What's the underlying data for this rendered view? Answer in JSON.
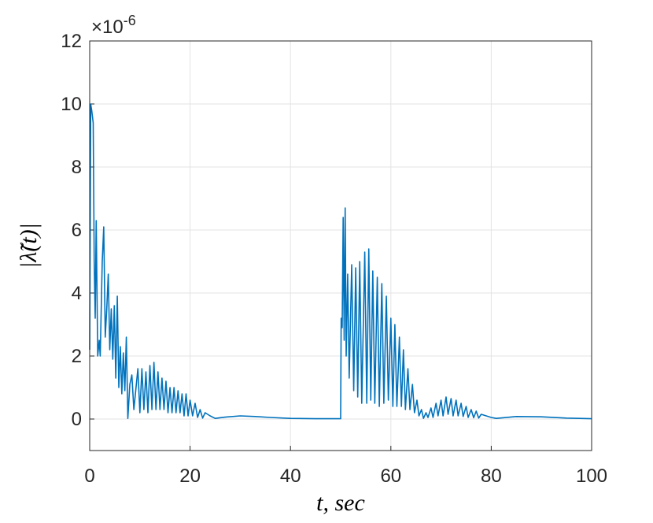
{
  "chart_data": {
    "type": "line",
    "xlabel": "t,  sec",
    "ylabel": "|λ̃(t)|",
    "y_scale_label": {
      "base": "×10",
      "exponent": "-6"
    },
    "xlim": [
      0,
      100
    ],
    "xticks": [
      0,
      20,
      40,
      60,
      80,
      100
    ],
    "ylim": [
      -1,
      12
    ],
    "yticks": [
      0,
      2,
      4,
      6,
      8,
      10,
      12
    ],
    "grid": true,
    "x": [
      0,
      0.2,
      0.4,
      0.7,
      0.9,
      1.1,
      1.3,
      1.6,
      1.9,
      2.1,
      2.5,
      2.8,
      3.1,
      3.4,
      3.7,
      4.0,
      4.3,
      4.6,
      4.9,
      5.2,
      5.5,
      5.8,
      6.1,
      6.4,
      6.7,
      7.0,
      7.3,
      7.6,
      8.0,
      8.4,
      8.8,
      9.6,
      10.0,
      10.4,
      10.8,
      11.2,
      11.6,
      12.0,
      12.4,
      12.8,
      13.2,
      13.6,
      14.0,
      14.4,
      14.8,
      15.2,
      15.6,
      16.0,
      16.4,
      16.8,
      17.2,
      17.6,
      18.0,
      18.4,
      18.8,
      19.2,
      19.6,
      20.0,
      20.5,
      21.0,
      21.5,
      22.0,
      22.5,
      23.0,
      24.0,
      25,
      27,
      30,
      33,
      36,
      40,
      45,
      50,
      50.1,
      50.3,
      50.5,
      50.7,
      50.9,
      51.1,
      51.4,
      51.7,
      52.2,
      52.6,
      53.0,
      53.4,
      53.8,
      54.2,
      54.8,
      55.2,
      55.6,
      56.0,
      56.4,
      56.8,
      57.3,
      57.7,
      58.2,
      58.6,
      59.1,
      59.5,
      60.0,
      60.4,
      60.8,
      61.2,
      61.7,
      62.1,
      62.5,
      62.9,
      63.4,
      63.8,
      64.3,
      64.7,
      65.2,
      65.6,
      66.1,
      66.5,
      67,
      67.4,
      68,
      68.4,
      69,
      69.4,
      70,
      70.4,
      71,
      71.4,
      72,
      72.4,
      73,
      73.4,
      74,
      74.4,
      75,
      75.4,
      76,
      76.5,
      77,
      77.5,
      78,
      79,
      80,
      81,
      85,
      90,
      95,
      100
    ],
    "series": [
      {
        "color": "#0072bd",
        "values": [
          2.2,
          10,
          9.8,
          9.4,
          5,
          3.2,
          6.3,
          2,
          2.5,
          2,
          5,
          6.1,
          2.6,
          3.5,
          4.6,
          2.2,
          3.5,
          1.9,
          3.6,
          1.3,
          3.9,
          1,
          2.3,
          0.8,
          2.1,
          0.9,
          2.6,
          0.02,
          1.1,
          1.4,
          0.3,
          1.6,
          0.2,
          1.6,
          0.3,
          1.5,
          0.2,
          1.7,
          0.3,
          1.8,
          0.3,
          1.5,
          0.3,
          1.3,
          0.3,
          1.2,
          0.2,
          1.0,
          0.2,
          1.0,
          0.2,
          0.9,
          0.2,
          0.8,
          0.1,
          0.8,
          0.1,
          0.6,
          0.1,
          0.5,
          0.05,
          0.3,
          0.03,
          0.2,
          0.1,
          0.02,
          0.06,
          0.1,
          0.08,
          0.05,
          0.02,
          0.01,
          0.01,
          3.2,
          2.9,
          6.4,
          2.5,
          6.7,
          2,
          4.6,
          1.3,
          4.9,
          0.9,
          4.8,
          0.7,
          5.0,
          0.5,
          5.3,
          0.5,
          5.4,
          0.6,
          4.7,
          0.5,
          4.5,
          0.4,
          4.3,
          0.5,
          3.9,
          0.6,
          3.2,
          0.4,
          3.0,
          0.4,
          2.6,
          0.4,
          2.2,
          0.3,
          1.6,
          0.3,
          1.1,
          0.2,
          0.6,
          0.1,
          0.3,
          0.02,
          0.2,
          0.05,
          0.35,
          0.05,
          0.5,
          0.1,
          0.6,
          0.1,
          0.7,
          0.15,
          0.65,
          0.1,
          0.6,
          0.1,
          0.5,
          0.08,
          0.4,
          0.05,
          0.3,
          0.04,
          0.25,
          0.03,
          0.15,
          0.1,
          0.05,
          0.02,
          0.08,
          0.07,
          0.03,
          0.01
        ]
      }
    ]
  }
}
